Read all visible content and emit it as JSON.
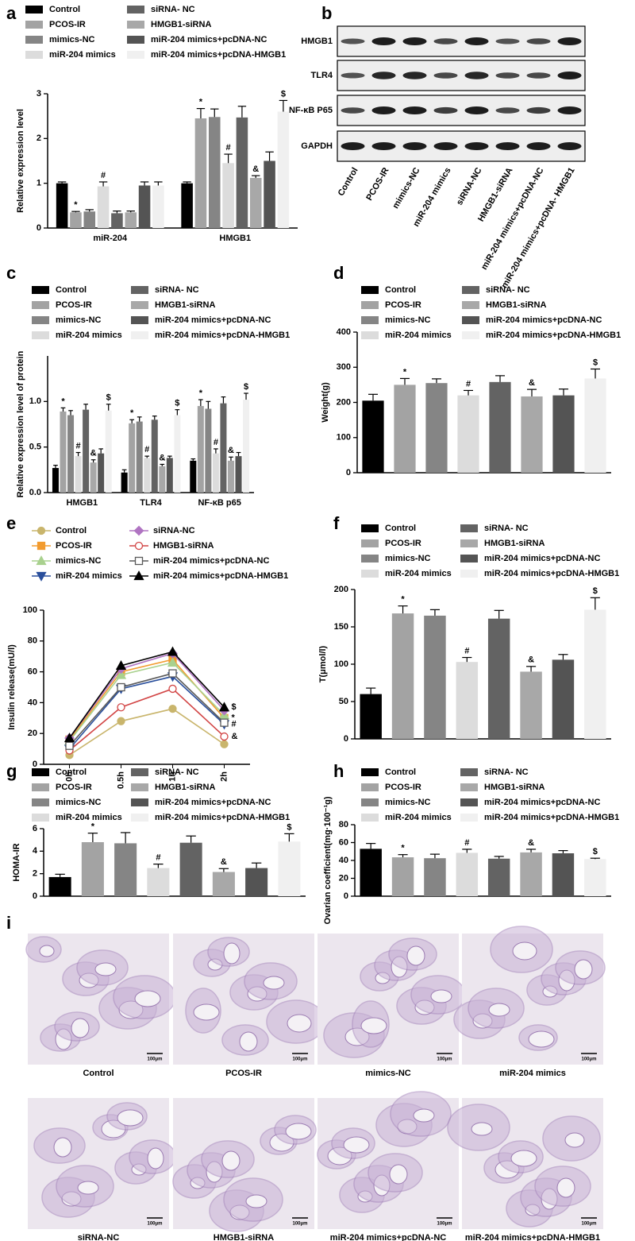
{
  "panels": [
    "a",
    "b",
    "c",
    "d",
    "e",
    "f",
    "g",
    "h",
    "i"
  ],
  "chart_data": [
    {
      "type": "bar",
      "y_label": "Relative expression level",
      "categories": [
        "miR-204",
        "HMGB1"
      ],
      "ylim": [
        0,
        3
      ],
      "yticks": [
        0,
        1,
        2,
        3
      ],
      "series": [
        {
          "name": "Control",
          "color": "#000000",
          "values": [
            1.0,
            1.0
          ],
          "errors": [
            0.03,
            0.03
          ],
          "annotations": [
            null,
            null
          ]
        },
        {
          "name": "PCOS-IR",
          "color": "#a3a3a3",
          "values": [
            0.35,
            2.45
          ],
          "errors": [
            0.02,
            0.22
          ],
          "annotations": [
            "*",
            "*"
          ]
        },
        {
          "name": "mimics-NC",
          "color": "#858585",
          "values": [
            0.37,
            2.48
          ],
          "errors": [
            0.04,
            0.18
          ],
          "annotations": [
            null,
            null
          ]
        },
        {
          "name": "miR-204 mimics",
          "color": "#dcdcdc",
          "values": [
            0.93,
            1.45
          ],
          "errors": [
            0.1,
            0.2
          ],
          "annotations": [
            "#",
            "#"
          ]
        },
        {
          "name": "siRNA- NC",
          "color": "#636363",
          "values": [
            0.33,
            2.47
          ],
          "errors": [
            0.05,
            0.25
          ],
          "annotations": [
            null,
            null
          ]
        },
        {
          "name": "HMGB1-siRNA",
          "color": "#a8a8a8",
          "values": [
            0.35,
            1.12
          ],
          "errors": [
            0.03,
            0.05
          ],
          "annotations": [
            null,
            "&"
          ]
        },
        {
          "name": "miR-204 mimics+pcDNA-NC",
          "color": "#545454",
          "values": [
            0.95,
            1.5
          ],
          "errors": [
            0.08,
            0.2
          ],
          "annotations": [
            null,
            null
          ]
        },
        {
          "name": "miR-204 mimics+pcDNA-HMGB1",
          "color": "#f0f0f0",
          "values": [
            0.95,
            2.6
          ],
          "errors": [
            0.08,
            0.25
          ],
          "annotations": [
            null,
            "$"
          ]
        }
      ]
    },
    {
      "type": "bar",
      "y_label": "Relative expression level of protein",
      "categories": [
        "HMGB1",
        "TLR4",
        "NF-κB p65"
      ],
      "ylim": [
        0,
        1.5
      ],
      "yticks": [
        {
          "value": 0,
          "label": "0.0"
        },
        {
          "value": 0.5,
          "label": "0.5"
        },
        {
          "value": 1,
          "label": "1.0"
        }
      ],
      "series": [
        {
          "name": "Control",
          "color": "#000000",
          "values": [
            0.27,
            0.22,
            0.35
          ],
          "errors": [
            0.03,
            0.03,
            0.02
          ],
          "annotations": [
            null,
            null,
            null
          ]
        },
        {
          "name": "PCOS-IR",
          "color": "#a3a3a3",
          "values": [
            0.89,
            0.76,
            0.95
          ],
          "errors": [
            0.04,
            0.04,
            0.07
          ],
          "annotations": [
            "*",
            "*",
            "*"
          ]
        },
        {
          "name": "mimics-NC",
          "color": "#858585",
          "values": [
            0.85,
            0.78,
            0.92
          ],
          "errors": [
            0.05,
            0.05,
            0.08
          ],
          "annotations": [
            null,
            null,
            null
          ]
        },
        {
          "name": "miR-204 mimics",
          "color": "#dcdcdc",
          "values": [
            0.4,
            0.38,
            0.43
          ],
          "errors": [
            0.04,
            0.02,
            0.05
          ],
          "annotations": [
            "#",
            "#",
            "#"
          ]
        },
        {
          "name": "siRNA- NC",
          "color": "#636363",
          "values": [
            0.91,
            0.8,
            0.98
          ],
          "errors": [
            0.06,
            0.04,
            0.07
          ],
          "annotations": [
            null,
            null,
            null
          ]
        },
        {
          "name": "HMGB1-siRNA",
          "color": "#a8a8a8",
          "values": [
            0.33,
            0.29,
            0.35
          ],
          "errors": [
            0.03,
            0.02,
            0.04
          ],
          "annotations": [
            "&",
            "&",
            "&"
          ]
        },
        {
          "name": "miR-204 mimics+pcDNA-NC",
          "color": "#545454",
          "values": [
            0.43,
            0.38,
            0.4
          ],
          "errors": [
            0.05,
            0.02,
            0.04
          ],
          "annotations": [
            null,
            null,
            null
          ]
        },
        {
          "name": "miR-204 mimics+pcDNA-HMGB1",
          "color": "#f0f0f0",
          "values": [
            0.9,
            0.85,
            1.02
          ],
          "errors": [
            0.07,
            0.06,
            0.07
          ],
          "annotations": [
            "$",
            "$",
            "$"
          ]
        }
      ]
    },
    {
      "type": "bar",
      "y_label": "Weight(g)",
      "categories": [
        "Control",
        "PCOS-IR",
        "mimics-NC",
        "miR-204 mimics",
        "siRNA- NC",
        "HMGB1-siRNA",
        "miR-204 mimics+pcDNA-NC",
        "miR-204 mimics+pcDNA-HMGB1"
      ],
      "colors": [
        "#000000",
        "#a3a3a3",
        "#858585",
        "#dcdcdc",
        "#636363",
        "#a8a8a8",
        "#545454",
        "#f0f0f0"
      ],
      "ylim": [
        0,
        400
      ],
      "yticks": [
        0,
        100,
        200,
        300,
        400
      ],
      "values": [
        205,
        250,
        255,
        220,
        258,
        217,
        220,
        268
      ],
      "errors": [
        18,
        18,
        12,
        14,
        18,
        20,
        18,
        27
      ],
      "annotations": [
        null,
        "*",
        null,
        "#",
        null,
        "&",
        null,
        "$"
      ]
    },
    {
      "type": "line",
      "y_label": "Insulin release(mU/l)",
      "categories": [
        "0h",
        "0.5h",
        "1h",
        "2h"
      ],
      "ylim": [
        0,
        100
      ],
      "yticks": [
        0,
        20,
        40,
        60,
        80,
        100
      ],
      "series": [
        {
          "name": "Control",
          "color": "#c9b56c",
          "marker": "circle",
          "filled": true,
          "values": [
            6,
            28,
            36,
            13
          ]
        },
        {
          "name": "PCOS-IR",
          "color": "#f29b2e",
          "marker": "square",
          "filled": true,
          "values": [
            16,
            60,
            68,
            30
          ],
          "end_label": "*"
        },
        {
          "name": "mimics-NC",
          "color": "#a9d18e",
          "marker": "triangle-up",
          "filled": true,
          "values": [
            15,
            58,
            66,
            32
          ]
        },
        {
          "name": "miR-204 mimics",
          "color": "#2a4f9c",
          "marker": "triangle-down",
          "filled": true,
          "values": [
            10,
            49,
            57,
            26
          ],
          "end_label": "#"
        },
        {
          "name": "siRNA-NC",
          "color": "#b074c2",
          "marker": "diamond",
          "filled": true,
          "values": [
            17,
            62,
            72,
            35
          ]
        },
        {
          "name": "HMGB1-siRNA",
          "color": "#d24545",
          "marker": "circle",
          "filled": false,
          "values": [
            9,
            37,
            49,
            18
          ],
          "end_label": "&"
        },
        {
          "name": "miR-204 mimics+pcDNA-NC",
          "color": "#5a5a5a",
          "marker": "square",
          "filled": false,
          "values": [
            12,
            50,
            59,
            27
          ]
        },
        {
          "name": "miR-204 mimics+pcDNA-HMGB1",
          "color": "#000000",
          "marker": "triangle-up",
          "filled": true,
          "values": [
            17,
            64,
            73,
            37
          ],
          "end_label": "$"
        }
      ]
    },
    {
      "type": "bar",
      "y_label": "T(μmol/l)",
      "categories": [
        "Control",
        "PCOS-IR",
        "mimics-NC",
        "miR-204 mimics",
        "siRNA- NC",
        "HMGB1-siRNA",
        "miR-204 mimics+pcDNA-NC",
        "miR-204 mimics+pcDNA-HMGB1"
      ],
      "colors": [
        "#000000",
        "#a3a3a3",
        "#858585",
        "#dcdcdc",
        "#636363",
        "#a8a8a8",
        "#545454",
        "#f0f0f0"
      ],
      "ylim": [
        0,
        200
      ],
      "yticks": [
        0,
        50,
        100,
        150,
        200
      ],
      "values": [
        60,
        168,
        165,
        103,
        161,
        90,
        106,
        173
      ],
      "errors": [
        8,
        10,
        8,
        6,
        11,
        7,
        7,
        16
      ],
      "annotations": [
        null,
        "*",
        null,
        "#",
        null,
        "&",
        null,
        "$"
      ]
    },
    {
      "type": "bar",
      "y_label": "HOMA-IR",
      "categories": [
        "Control",
        "PCOS-IR",
        "mimics-NC",
        "miR-204 mimics",
        "siRNA- NC",
        "HMGB1-siRNA",
        "miR-204 mimics+pcDNA-NC",
        "miR-204 mimics+pcDNA-HMGB1"
      ],
      "colors": [
        "#000000",
        "#a3a3a3",
        "#858585",
        "#dcdcdc",
        "#636363",
        "#a8a8a8",
        "#545454",
        "#f0f0f0"
      ],
      "ylim": [
        0,
        6
      ],
      "yticks": [
        0,
        2,
        4,
        6
      ],
      "values": [
        1.7,
        4.8,
        4.7,
        2.5,
        4.75,
        2.15,
        2.5,
        4.85
      ],
      "errors": [
        0.25,
        0.8,
        0.95,
        0.35,
        0.6,
        0.3,
        0.45,
        0.7
      ],
      "annotations": [
        null,
        "*",
        null,
        "#",
        null,
        "&",
        null,
        "$"
      ]
    },
    {
      "type": "bar",
      "y_label": "Ovarian coefficient(mg·100⁻¹g)",
      "categories": [
        "Control",
        "PCOS-IR",
        "mimics-NC",
        "miR-204 mimics",
        "siRNA- NC",
        "HMGB1-siRNA",
        "miR-204 mimics+pcDNA-NC",
        "miR-204 mimics+pcDNA-HMGB1"
      ],
      "colors": [
        "#000000",
        "#a3a3a3",
        "#858585",
        "#dcdcdc",
        "#636363",
        "#a8a8a8",
        "#545454",
        "#f0f0f0"
      ],
      "ylim": [
        0,
        80
      ],
      "yticks": [
        0,
        20,
        40,
        60,
        80
      ],
      "values": [
        53,
        43.5,
        42.5,
        48.5,
        42,
        49,
        48,
        41.5
      ],
      "errors": [
        6,
        3,
        4.5,
        4,
        2.5,
        3.5,
        3,
        1
      ],
      "annotations": [
        null,
        "*",
        null,
        "#",
        null,
        "&",
        null,
        "$"
      ]
    }
  ],
  "western_blot": {
    "proteins": [
      "HMGB1",
      "TLR4",
      "NF-κB P65",
      "GAPDH"
    ],
    "lanes": [
      "Control",
      "PCOS-IR",
      "mimics-NC",
      "miR-204 mimics",
      "siRNA-NC",
      "HMGB1-siRNA",
      "miR-204 mimics+pcDNA-NC",
      "miR-204 mimics+pcDNA- HMGB1"
    ]
  },
  "histology": {
    "scale_bar": "100μm",
    "images": [
      "Control",
      "PCOS-IR",
      "mimics-NC",
      "miR-204 mimics",
      "siRNA-NC",
      "HMGB1-siRNA",
      "miR-204 mimics+pcDNA-NC",
      "miR-204 mimics+pcDNA-HMGB1"
    ]
  }
}
